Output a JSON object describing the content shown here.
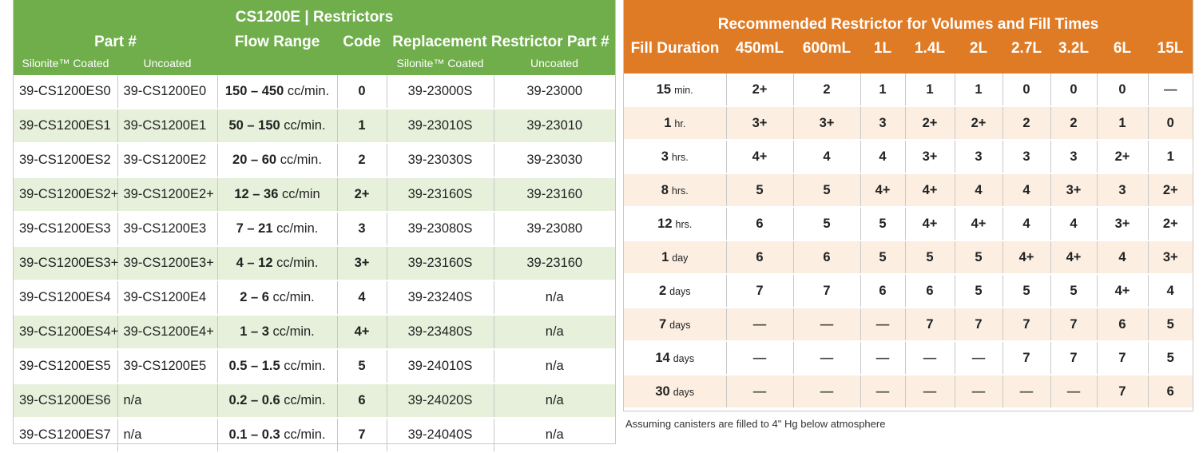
{
  "left": {
    "title": "CS1200E | Restrictors",
    "headers": {
      "part": "Part #",
      "flow": "Flow Range",
      "code": "Code",
      "replacement": "Replacement Restrictor Part #",
      "sub_coated": "Silonite™ Coated",
      "sub_uncoated": "Uncoated",
      "sub_rep_coated": "Silonite™ Coated",
      "sub_rep_uncoated": "Uncoated"
    },
    "rows": [
      {
        "coated": "39-CS1200ES0",
        "uncoated": "39-CS1200E0",
        "range": "150 – 450",
        "unit": "cc/min.",
        "code": "0",
        "rep_coated": "39-23000S",
        "rep_uncoated": "39-23000"
      },
      {
        "coated": "39-CS1200ES1",
        "uncoated": "39-CS1200E1",
        "range": "50 – 150",
        "unit": "cc/min.",
        "code": "1",
        "rep_coated": "39-23010S",
        "rep_uncoated": "39-23010"
      },
      {
        "coated": "39-CS1200ES2",
        "uncoated": "39-CS1200E2",
        "range": "20 – 60",
        "unit": "cc/min.",
        "code": "2",
        "rep_coated": "39-23030S",
        "rep_uncoated": "39-23030"
      },
      {
        "coated": "39-CS1200ES2+",
        "uncoated": "39-CS1200E2+",
        "range": "12 – 36",
        "unit": "cc/min",
        "code": "2+",
        "rep_coated": "39-23160S",
        "rep_uncoated": "39-23160"
      },
      {
        "coated": "39-CS1200ES3",
        "uncoated": "39-CS1200E3",
        "range": "7 – 21",
        "unit": "cc/min.",
        "code": "3",
        "rep_coated": "39-23080S",
        "rep_uncoated": "39-23080"
      },
      {
        "coated": "39-CS1200ES3+",
        "uncoated": "39-CS1200E3+",
        "range": "4 – 12",
        "unit": "cc/min.",
        "code": "3+",
        "rep_coated": "39-23160S",
        "rep_uncoated": "39-23160"
      },
      {
        "coated": "39-CS1200ES4",
        "uncoated": "39-CS1200E4",
        "range": "2 – 6",
        "unit": "cc/min.",
        "code": "4",
        "rep_coated": "39-23240S",
        "rep_uncoated": "n/a"
      },
      {
        "coated": "39-CS1200ES4+",
        "uncoated": "39-CS1200E4+",
        "range": "1 – 3",
        "unit": "cc/min.",
        "code": "4+",
        "rep_coated": "39-23480S",
        "rep_uncoated": "n/a"
      },
      {
        "coated": "39-CS1200ES5",
        "uncoated": "39-CS1200E5",
        "range": "0.5 – 1.5",
        "unit": "cc/min.",
        "code": "5",
        "rep_coated": "39-24010S",
        "rep_uncoated": "n/a"
      },
      {
        "coated": "39-CS1200ES6",
        "uncoated": "n/a",
        "range": "0.2 – 0.6",
        "unit": "cc/min.",
        "code": "6",
        "rep_coated": "39-24020S",
        "rep_uncoated": "n/a"
      },
      {
        "coated": "39-CS1200ES7",
        "uncoated": "n/a",
        "range": "0.1 – 0.3",
        "unit": "cc/min.",
        "code": "7",
        "rep_coated": "39-24040S",
        "rep_uncoated": "n/a"
      }
    ]
  },
  "right": {
    "title": "Recommended Restrictor for Volumes and Fill Times",
    "fill_header": "Fill Duration",
    "volumes": [
      "450mL",
      "600mL",
      "1L",
      "1.4L",
      "2L",
      "2.7L",
      "3.2L",
      "6L",
      "15L"
    ],
    "rows": [
      {
        "num": "15",
        "unit": "min.",
        "cells": [
          "2+",
          "2",
          "1",
          "1",
          "1",
          "0",
          "0",
          "0",
          "—"
        ]
      },
      {
        "num": "1",
        "unit": "hr.",
        "cells": [
          "3+",
          "3+",
          "3",
          "2+",
          "2+",
          "2",
          "2",
          "1",
          "0"
        ]
      },
      {
        "num": "3",
        "unit": "hrs.",
        "cells": [
          "4+",
          "4",
          "4",
          "3+",
          "3",
          "3",
          "3",
          "2+",
          "1"
        ]
      },
      {
        "num": "8",
        "unit": "hrs.",
        "cells": [
          "5",
          "5",
          "4+",
          "4+",
          "4",
          "4",
          "3+",
          "3",
          "2+"
        ]
      },
      {
        "num": "12",
        "unit": "hrs.",
        "cells": [
          "6",
          "5",
          "5",
          "4+",
          "4+",
          "4",
          "4",
          "3+",
          "2+"
        ]
      },
      {
        "num": "1",
        "unit": "day",
        "cells": [
          "6",
          "6",
          "5",
          "5",
          "5",
          "4+",
          "4+",
          "4",
          "3+"
        ]
      },
      {
        "num": "2",
        "unit": "days",
        "cells": [
          "7",
          "7",
          "6",
          "6",
          "5",
          "5",
          "5",
          "4+",
          "4"
        ]
      },
      {
        "num": "7",
        "unit": "days",
        "cells": [
          "—",
          "—",
          "—",
          "7",
          "7",
          "7",
          "7",
          "6",
          "5"
        ]
      },
      {
        "num": "14",
        "unit": "days",
        "cells": [
          "—",
          "—",
          "—",
          "—",
          "—",
          "7",
          "7",
          "7",
          "5"
        ]
      },
      {
        "num": "30",
        "unit": "days",
        "cells": [
          "—",
          "—",
          "—",
          "—",
          "—",
          "—",
          "—",
          "7",
          "6"
        ]
      }
    ],
    "footnote": "Assuming canisters are filled to 4\" Hg below atmosphere"
  },
  "colors": {
    "green": "#6fae4a",
    "green_stripe": "#e6f0db",
    "orange": "#e07b25",
    "orange_stripe": "#fcefe2"
  }
}
